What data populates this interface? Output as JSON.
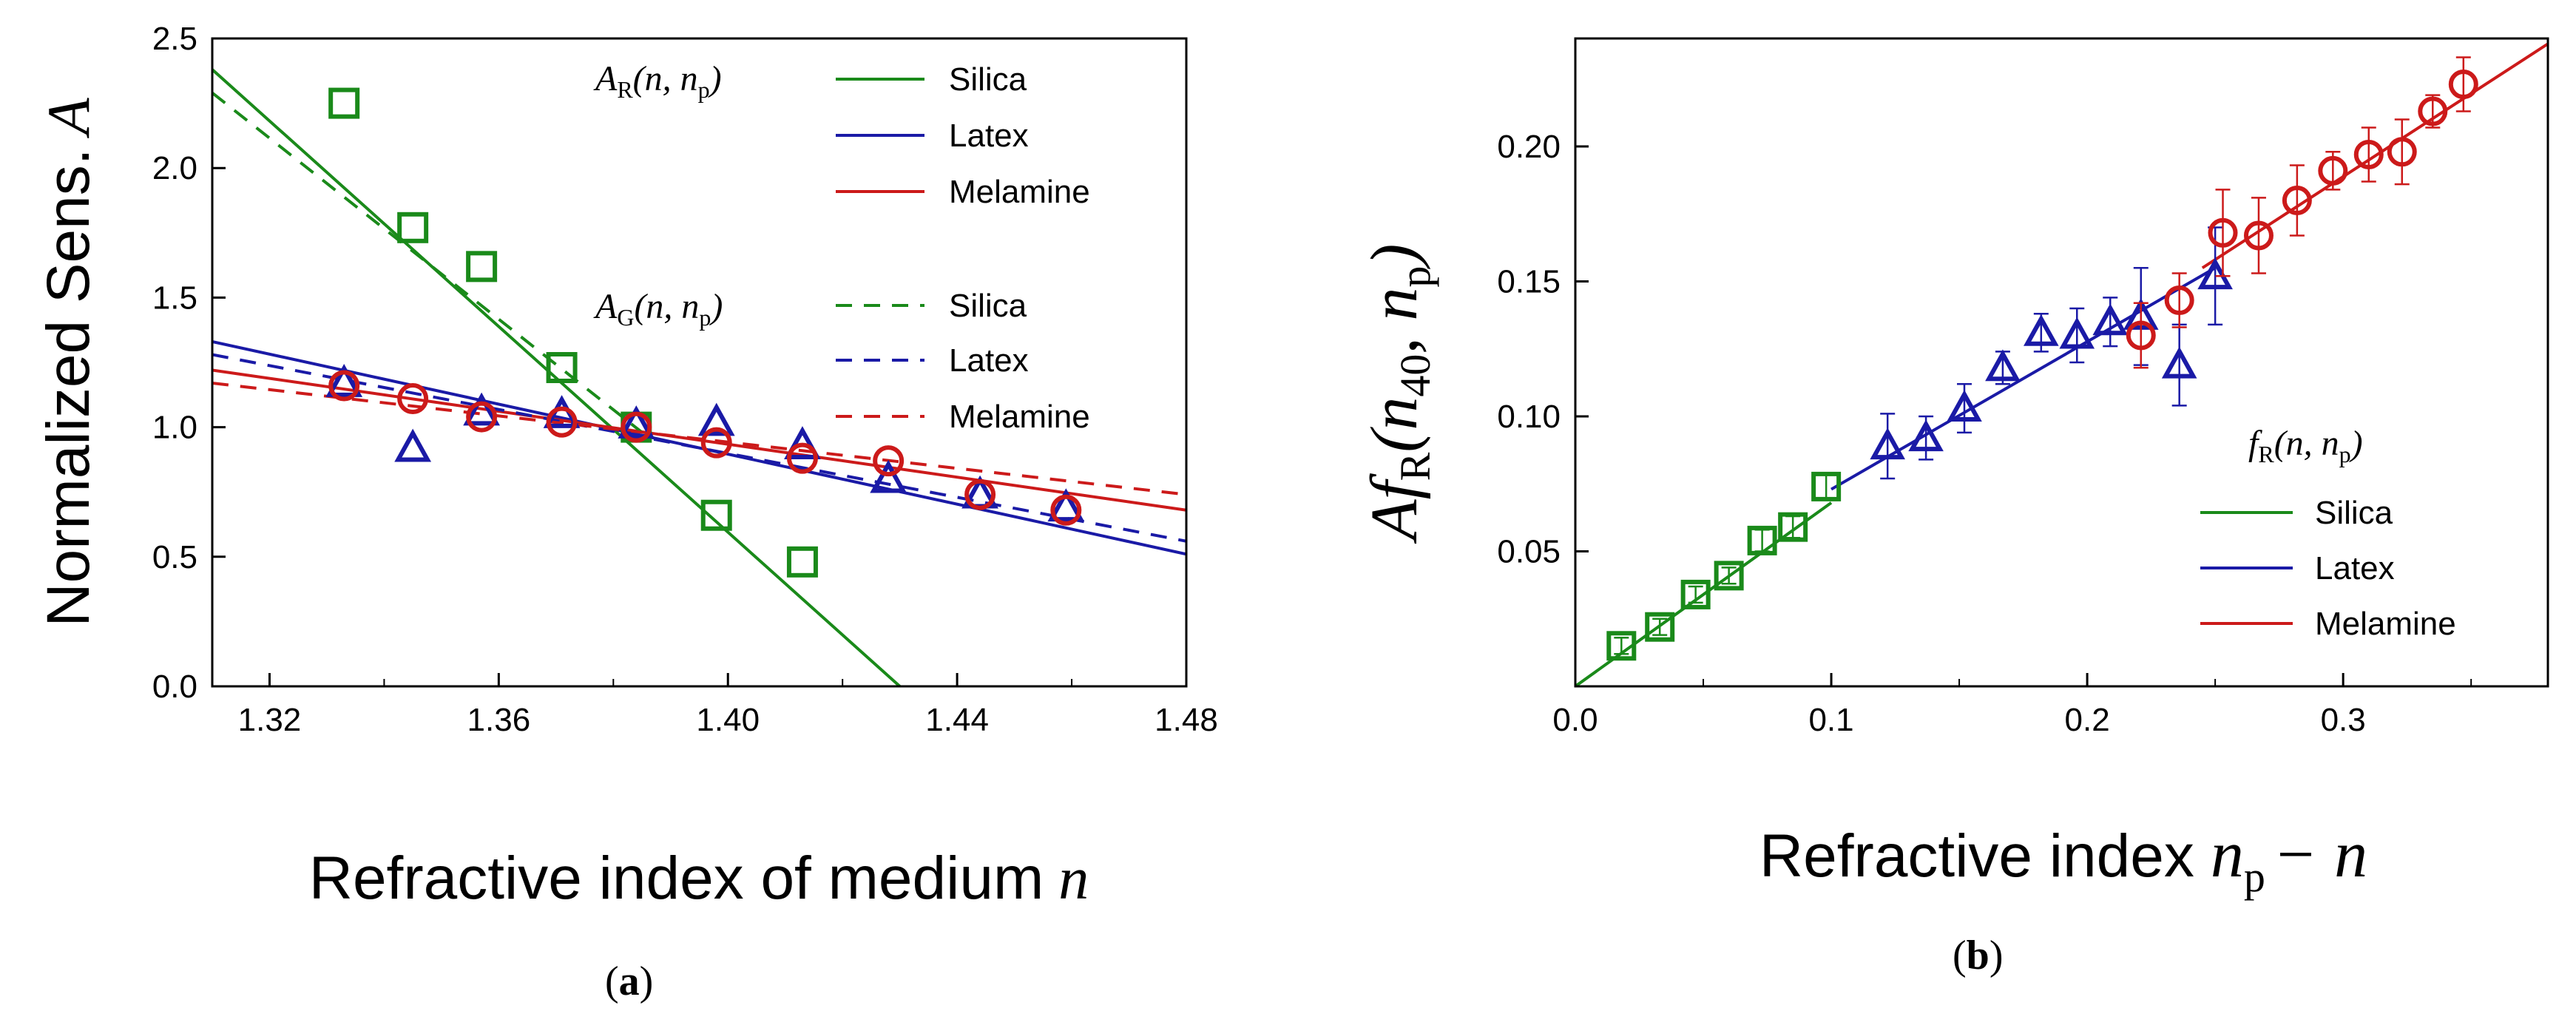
{
  "chart_data": [
    {
      "type": "scatter",
      "panel_label": "(a)",
      "panel_letter": "a",
      "xlabel": "Refractive index of medium",
      "xlabel_var": "n",
      "ylabel": "Normalized Sens.",
      "ylabel_var": "A",
      "xlim": [
        1.31,
        1.48
      ],
      "ylim": [
        0.0,
        2.5
      ],
      "xticks": [
        "1.32",
        "1.36",
        "1.40",
        "1.44",
        "1.48"
      ],
      "xtick_values": [
        1.32,
        1.36,
        1.4,
        1.44,
        1.48
      ],
      "yticks": [
        "0.0",
        "0.5",
        "1.0",
        "1.5",
        "2.0",
        "2.5"
      ],
      "ytick_values": [
        0.0,
        0.5,
        1.0,
        1.5,
        2.0,
        2.5
      ],
      "legend_groups": [
        {
          "title_main": "A",
          "title_sub": "R",
          "title_args": "(n, n",
          "title_sub2": "p",
          "title_close": ")",
          "style": "solid",
          "entries": [
            "Silica",
            "Latex",
            "Melamine"
          ]
        },
        {
          "title_main": "A",
          "title_sub": "G",
          "title_args": "(n, n",
          "title_sub2": "p",
          "title_close": ")",
          "style": "dashed",
          "entries": [
            "Silica",
            "Latex",
            "Melamine"
          ]
        }
      ],
      "series": [
        {
          "name": "Silica",
          "color": "#1a8a1a",
          "marker": "square",
          "x": [
            1.333,
            1.345,
            1.357,
            1.371,
            1.384,
            1.398,
            1.413
          ],
          "y": [
            2.25,
            1.77,
            1.62,
            1.23,
            1.0,
            0.66,
            0.48
          ]
        },
        {
          "name": "Latex",
          "color": "#1a1aa6",
          "marker": "triangle",
          "x": [
            1.333,
            1.345,
            1.357,
            1.371,
            1.384,
            1.398,
            1.413,
            1.428,
            1.444,
            1.459
          ],
          "y": [
            1.17,
            0.92,
            1.06,
            1.05,
            1.01,
            1.02,
            0.93,
            0.8,
            0.74,
            0.69
          ]
        },
        {
          "name": "Melamine",
          "color": "#cc1a1a",
          "marker": "circle",
          "x": [
            1.333,
            1.345,
            1.357,
            1.371,
            1.384,
            1.398,
            1.413,
            1.428,
            1.444,
            1.459
          ],
          "y": [
            1.16,
            1.11,
            1.04,
            1.02,
            1.0,
            0.94,
            0.88,
            0.87,
            0.74,
            0.68
          ]
        }
      ],
      "fit_lines": [
        {
          "name": "Silica A_R",
          "color": "#1a8a1a",
          "style": "solid",
          "x": [
            1.31,
            1.43
          ],
          "y": [
            2.38,
            0.0
          ]
        },
        {
          "name": "Latex A_R",
          "color": "#1a1aa6",
          "style": "solid",
          "x": [
            1.31,
            1.48
          ],
          "y": [
            1.33,
            0.51
          ]
        },
        {
          "name": "Melamine A_R",
          "color": "#cc1a1a",
          "style": "solid",
          "x": [
            1.31,
            1.48
          ],
          "y": [
            1.22,
            0.68
          ]
        },
        {
          "name": "Silica A_G",
          "color": "#1a8a1a",
          "style": "dashed",
          "x": [
            1.31,
            1.385
          ],
          "y": [
            2.29,
            0.98
          ]
        },
        {
          "name": "Latex A_G",
          "color": "#1a1aa6",
          "style": "dashed",
          "x": [
            1.31,
            1.48
          ],
          "y": [
            1.28,
            0.56
          ]
        },
        {
          "name": "Melamine A_G",
          "color": "#cc1a1a",
          "style": "dashed",
          "x": [
            1.31,
            1.48
          ],
          "y": [
            1.17,
            0.74
          ]
        }
      ]
    },
    {
      "type": "scatter",
      "panel_label": "(b)",
      "panel_letter": "b",
      "xlabel": "Refractive index",
      "xlabel_expr": {
        "var": "n",
        "sub": "p",
        "rest": "− n"
      },
      "ylabel_expr": {
        "A": "A",
        "f": "f",
        "fsub": "R",
        "open": "(n",
        "n40sub": "40",
        "mid": ", n",
        "psub": "p",
        "close": ")"
      },
      "xlim": [
        0.0,
        0.38
      ],
      "ylim": [
        0.0,
        0.24
      ],
      "xticks": [
        "0.0",
        "0.1",
        "0.2",
        "0.3"
      ],
      "xtick_values": [
        0.0,
        0.1,
        0.2,
        0.3
      ],
      "yticks": [
        "0.05",
        "0.10",
        "0.15",
        "0.20"
      ],
      "ytick_values": [
        0.05,
        0.1,
        0.15,
        0.2
      ],
      "legend": {
        "title_main": "f",
        "title_sub": "R",
        "title_args": "(n, n",
        "title_sub2": "p",
        "title_close": ")",
        "entries": [
          "Silica",
          "Latex",
          "Melamine"
        ]
      },
      "series": [
        {
          "name": "Silica",
          "color": "#1a8a1a",
          "marker": "square",
          "x": [
            0.018,
            0.033,
            0.047,
            0.06,
            0.073,
            0.085,
            0.098
          ],
          "y": [
            0.015,
            0.022,
            0.034,
            0.041,
            0.054,
            0.059,
            0.074
          ],
          "err": [
            0.003,
            0.003,
            0.003,
            0.003,
            0.004,
            0.004,
            0.005
          ]
        },
        {
          "name": "Latex",
          "color": "#1a1aa6",
          "marker": "triangle",
          "x": [
            0.122,
            0.137,
            0.152,
            0.167,
            0.182,
            0.196,
            0.209,
            0.221,
            0.236,
            0.25
          ],
          "y": [
            0.089,
            0.092,
            0.103,
            0.118,
            0.131,
            0.13,
            0.135,
            0.137,
            0.119,
            0.152
          ],
          "err": [
            0.012,
            0.008,
            0.009,
            0.006,
            0.007,
            0.01,
            0.009,
            0.018,
            0.015,
            0.018
          ]
        },
        {
          "name": "Melamine",
          "color": "#cc1a1a",
          "marker": "circle",
          "x": [
            0.221,
            0.236,
            0.253,
            0.267,
            0.282,
            0.296,
            0.31,
            0.323,
            0.335,
            0.347
          ],
          "y": [
            0.13,
            0.143,
            0.168,
            0.167,
            0.18,
            0.191,
            0.197,
            0.198,
            0.213,
            0.223
          ],
          "err": [
            0.012,
            0.01,
            0.016,
            0.014,
            0.013,
            0.007,
            0.01,
            0.012,
            0.006,
            0.01
          ]
        }
      ],
      "fit_lines": [
        {
          "name": "Silica",
          "color": "#1a8a1a",
          "x": [
            0.0,
            0.1
          ],
          "y": [
            0.0,
            0.068
          ]
        },
        {
          "name": "Latex",
          "color": "#1a1aa6",
          "x": [
            0.1,
            0.25
          ],
          "y": [
            0.073,
            0.155
          ]
        },
        {
          "name": "Melamine",
          "color": "#cc1a1a",
          "x": [
            0.245,
            0.38
          ],
          "y": [
            0.155,
            0.238
          ]
        }
      ]
    }
  ]
}
